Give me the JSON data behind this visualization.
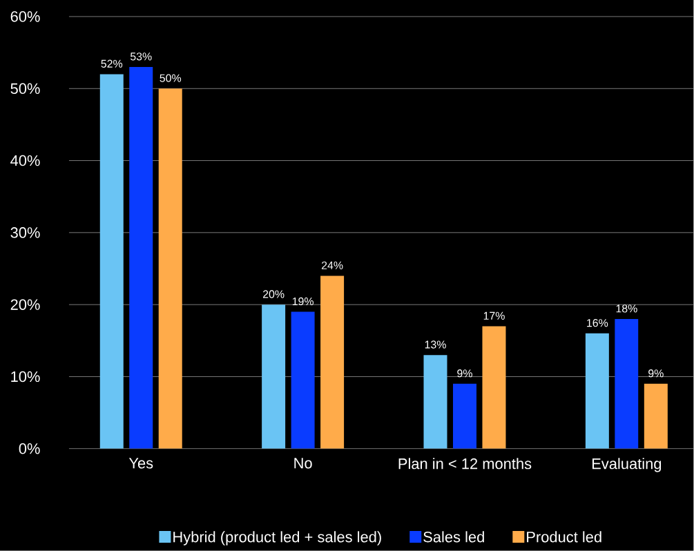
{
  "chart_data": {
    "type": "bar",
    "categories": [
      "Yes",
      "No",
      "Plan in < 12 months",
      "Evaluating"
    ],
    "series": [
      {
        "name": "Hybrid (product led + sales led)",
        "color": "#6ac4f4",
        "values": [
          52,
          20,
          13,
          16
        ],
        "value_labels": [
          "52%",
          "20%",
          "13%",
          "16%"
        ]
      },
      {
        "name": "Sales led",
        "color": "#0a3cff",
        "values": [
          53,
          19,
          9,
          18
        ],
        "value_labels": [
          "53%",
          "19%",
          "9%",
          "18%"
        ]
      },
      {
        "name": "Product led",
        "color": "#ffab4a",
        "values": [
          50,
          24,
          17,
          9
        ],
        "value_labels": [
          "50%",
          "24%",
          "17%",
          "9%"
        ]
      }
    ],
    "ylim": [
      0,
      60
    ],
    "yticks": [
      {
        "value": 0,
        "label": "0%"
      },
      {
        "value": 10,
        "label": "10%"
      },
      {
        "value": 20,
        "label": "20%"
      },
      {
        "value": 30,
        "label": "30%"
      },
      {
        "value": 40,
        "label": "40%"
      },
      {
        "value": 50,
        "label": "50%"
      },
      {
        "value": 60,
        "label": "60%"
      }
    ],
    "grid": "y",
    "legend": "bottom"
  }
}
